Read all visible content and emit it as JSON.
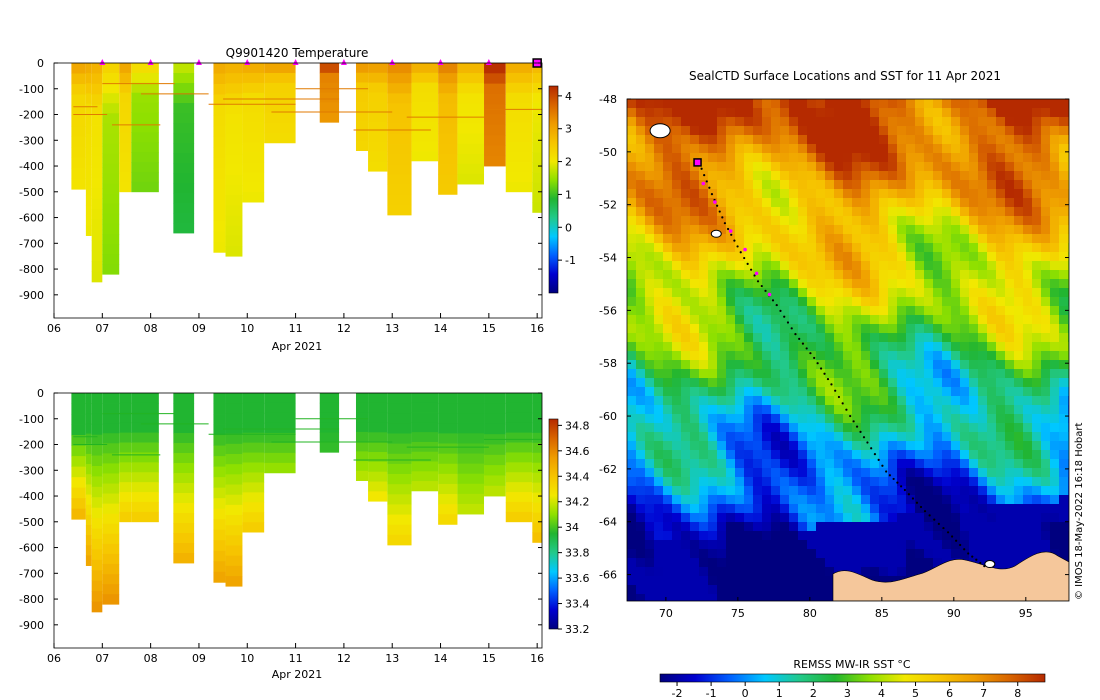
{
  "colors": {
    "temp_ramp": [
      "#00007f",
      "#0000d0",
      "#0060ff",
      "#00c8ff",
      "#22c98a",
      "#21b531",
      "#8ee000",
      "#f2e800",
      "#f6c400",
      "#ee9b00",
      "#d86400",
      "#b52a00"
    ],
    "land": "#f5c79b",
    "marker": "#ff00ff",
    "line_green": "#22b422",
    "line_orange": "#e07a00"
  },
  "chart_data": [
    {
      "id": "temperature",
      "type": "heatmap",
      "title": "Q9901420  Temperature",
      "xlabel": "Apr 2021",
      "ylabel": "",
      "x_ticks": [
        "06",
        "07",
        "08",
        "09",
        "10",
        "11",
        "12",
        "13",
        "14",
        "15",
        "16"
      ],
      "xlim": [
        6,
        16.1
      ],
      "y_ticks": [
        "0",
        "-100",
        "-200",
        "-300",
        "-400",
        "-500",
        "-600",
        "-700",
        "-800",
        "-900"
      ],
      "ylim": [
        -990,
        0
      ],
      "colorbar": {
        "min": -2,
        "max": 4.3,
        "ticks": [
          "-1",
          "0",
          "1",
          "2",
          "3",
          "4"
        ],
        "tick_values": [
          -1,
          0,
          1,
          2,
          3,
          4
        ]
      },
      "surface_markers_day": [
        7.0,
        8.0,
        9.0,
        10.0,
        11.0,
        12.0,
        13.0,
        14.0,
        15.0,
        16.0
      ],
      "profiles": [
        {
          "start": 6.36,
          "end": 6.66,
          "depth": 490,
          "value": 2.3
        },
        {
          "start": 6.66,
          "end": 6.78,
          "depth": 670,
          "value": 2.2
        },
        {
          "start": 6.78,
          "end": 7.0,
          "depth": 850,
          "value": 2.1
        },
        {
          "start": 7.0,
          "end": 7.35,
          "depth": 820,
          "value": 1.6
        },
        {
          "start": 7.35,
          "end": 7.6,
          "depth": 500,
          "value": 2.3
        },
        {
          "start": 7.6,
          "end": 8.17,
          "depth": 500,
          "value": 1.5
        },
        {
          "start": 8.47,
          "end": 8.9,
          "depth": 660,
          "value": 1.0
        },
        {
          "start": 9.3,
          "end": 9.55,
          "depth": 735,
          "value": 2.2
        },
        {
          "start": 9.55,
          "end": 9.9,
          "depth": 750,
          "value": 2.1
        },
        {
          "start": 9.9,
          "end": 10.35,
          "depth": 540,
          "value": 2.2
        },
        {
          "start": 10.35,
          "end": 11.0,
          "depth": 310,
          "value": 2.4
        },
        {
          "start": 11.5,
          "end": 11.9,
          "depth": 230,
          "value": 3.4
        },
        {
          "start": 12.25,
          "end": 12.5,
          "depth": 340,
          "value": 2.5
        },
        {
          "start": 12.5,
          "end": 12.9,
          "depth": 420,
          "value": 2.4
        },
        {
          "start": 12.9,
          "end": 13.4,
          "depth": 590,
          "value": 2.6
        },
        {
          "start": 13.4,
          "end": 13.95,
          "depth": 380,
          "value": 2.2
        },
        {
          "start": 13.95,
          "end": 14.35,
          "depth": 510,
          "value": 2.7
        },
        {
          "start": 14.35,
          "end": 14.9,
          "depth": 470,
          "value": 2.1
        },
        {
          "start": 14.9,
          "end": 15.35,
          "depth": 400,
          "value": 3.6
        },
        {
          "start": 15.35,
          "end": 15.9,
          "depth": 500,
          "value": 2.2
        },
        {
          "start": 15.9,
          "end": 16.1,
          "depth": 580,
          "value": 2.0
        }
      ]
    },
    {
      "id": "salinity",
      "type": "heatmap",
      "title": "",
      "xlabel": "Apr 2021",
      "ylabel": "",
      "x_ticks": [
        "06",
        "07",
        "08",
        "09",
        "10",
        "11",
        "12",
        "13",
        "14",
        "15",
        "16"
      ],
      "xlim": [
        6,
        16.1
      ],
      "y_ticks": [
        "0",
        "-100",
        "-200",
        "-300",
        "-400",
        "-500",
        "-600",
        "-700",
        "-800",
        "-900"
      ],
      "ylim": [
        -990,
        0
      ],
      "colorbar": {
        "min": 33.2,
        "max": 34.85,
        "ticks": [
          "33.2",
          "33.4",
          "33.6",
          "33.8",
          "34",
          "34.2",
          "34.4",
          "34.6",
          "34.8"
        ],
        "tick_values": [
          33.2,
          33.4,
          33.6,
          33.8,
          34.0,
          34.2,
          34.4,
          34.6,
          34.8
        ]
      },
      "profiles": [
        {
          "start": 6.36,
          "end": 6.66,
          "depth": 490,
          "value": 34.5
        },
        {
          "start": 6.66,
          "end": 6.78,
          "depth": 670,
          "value": 34.55
        },
        {
          "start": 6.78,
          "end": 7.0,
          "depth": 850,
          "value": 34.6
        },
        {
          "start": 7.0,
          "end": 7.35,
          "depth": 820,
          "value": 34.6
        },
        {
          "start": 7.35,
          "end": 7.6,
          "depth": 500,
          "value": 34.4
        },
        {
          "start": 7.6,
          "end": 8.17,
          "depth": 500,
          "value": 34.4
        },
        {
          "start": 8.47,
          "end": 8.9,
          "depth": 660,
          "value": 34.5
        },
        {
          "start": 9.3,
          "end": 9.55,
          "depth": 735,
          "value": 34.55
        },
        {
          "start": 9.55,
          "end": 9.9,
          "depth": 750,
          "value": 34.55
        },
        {
          "start": 9.9,
          "end": 10.35,
          "depth": 540,
          "value": 34.4
        },
        {
          "start": 10.35,
          "end": 11.0,
          "depth": 310,
          "value": 34.15
        },
        {
          "start": 11.5,
          "end": 11.9,
          "depth": 230,
          "value": 34.0
        },
        {
          "start": 12.25,
          "end": 12.5,
          "depth": 340,
          "value": 34.2
        },
        {
          "start": 12.5,
          "end": 12.9,
          "depth": 420,
          "value": 34.3
        },
        {
          "start": 12.9,
          "end": 13.4,
          "depth": 590,
          "value": 34.35
        },
        {
          "start": 13.4,
          "end": 13.95,
          "depth": 380,
          "value": 34.2
        },
        {
          "start": 13.95,
          "end": 14.35,
          "depth": 510,
          "value": 34.35
        },
        {
          "start": 14.35,
          "end": 14.9,
          "depth": 470,
          "value": 34.2
        },
        {
          "start": 14.9,
          "end": 15.35,
          "depth": 400,
          "value": 34.2
        },
        {
          "start": 15.35,
          "end": 15.9,
          "depth": 500,
          "value": 34.4
        },
        {
          "start": 15.9,
          "end": 16.1,
          "depth": 580,
          "value": 34.45
        }
      ]
    },
    {
      "id": "sst_map",
      "type": "heatmap",
      "title": "SealCTD Surface Locations and SST for 11 Apr 2021",
      "xlabel": "",
      "ylabel": "",
      "x_ticks": [
        "70",
        "75",
        "80",
        "85",
        "90",
        "95"
      ],
      "xlim": [
        67.3,
        98
      ],
      "y_ticks": [
        "-48",
        "-50",
        "-52",
        "-54",
        "-56",
        "-58",
        "-60",
        "-62",
        "-64",
        "-66"
      ],
      "ylim": [
        -67,
        -48
      ],
      "colorbar": {
        "label": "REMSS MW-IR SST °C",
        "min": -2.5,
        "max": 8.8,
        "ticks": [
          "-2",
          "-1",
          "0",
          "1",
          "2",
          "3",
          "4",
          "5",
          "6",
          "7",
          "8"
        ],
        "tick_values": [
          -2,
          -1,
          0,
          1,
          2,
          3,
          4,
          5,
          6,
          7,
          8
        ]
      },
      "track": [
        [
          72.3,
          -50.4
        ],
        [
          73.2,
          -51.6
        ],
        [
          74.1,
          -52.7
        ],
        [
          75.2,
          -53.8
        ],
        [
          76.4,
          -54.9
        ],
        [
          77.7,
          -55.8
        ],
        [
          79.0,
          -56.9
        ],
        [
          80.3,
          -57.8
        ],
        [
          81.5,
          -58.8
        ],
        [
          82.8,
          -60.0
        ],
        [
          84.0,
          -61.0
        ],
        [
          85.3,
          -62.1
        ],
        [
          86.6,
          -62.8
        ],
        [
          88.0,
          -63.6
        ],
        [
          89.6,
          -64.4
        ],
        [
          91.0,
          -65.2
        ],
        [
          92.4,
          -65.8
        ]
      ],
      "recent_positions": [
        [
          72.6,
          -51.2
        ],
        [
          73.4,
          -51.9
        ],
        [
          74.5,
          -53.0
        ],
        [
          75.5,
          -53.7
        ],
        [
          76.3,
          -54.6
        ],
        [
          77.2,
          -55.4
        ]
      ],
      "deployment_position": [
        72.2,
        -50.4
      ],
      "islands": [
        [
          69.6,
          -49.2
        ],
        [
          73.5,
          -53.1
        ],
        [
          92.5,
          -65.6
        ]
      ]
    }
  ],
  "watermark": "© IMOS 18-May-2022 16:18 Hobart"
}
